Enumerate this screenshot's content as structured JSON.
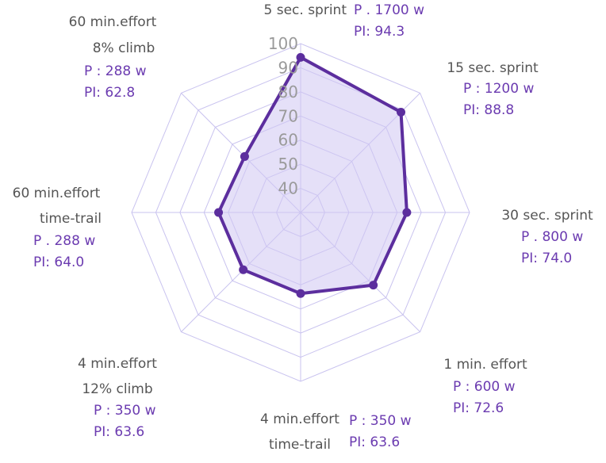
{
  "chart_data": {
    "type": "radar",
    "rlim": [
      30,
      100
    ],
    "ticks": [
      "40",
      "50",
      "60",
      "70",
      "80",
      "90",
      "100"
    ],
    "tick_values": [
      40,
      50,
      60,
      70,
      80,
      90,
      100
    ],
    "grid": true,
    "colors": {
      "series_line": "#5c2e9e",
      "series_fill": "#cfc7f3",
      "grid": "#c9c3ef",
      "label_gray": "#555555",
      "label_purple": "#6b3bb0",
      "tick": "#9a9a9a"
    },
    "axes": [
      {
        "name_lines": [
          "5 sec. sprint"
        ],
        "power": "P . 1700 w",
        "pi": "PI: 94.3",
        "value": 94.3
      },
      {
        "name_lines": [
          "15 sec. sprint"
        ],
        "power": "P : 1200 w",
        "pi": "PI: 88.8",
        "value": 88.8
      },
      {
        "name_lines": [
          "30 sec. sprint"
        ],
        "power": "P . 800 w",
        "pi": "PI: 74.0",
        "value": 74.0
      },
      {
        "name_lines": [
          "1 min. effort"
        ],
        "power": "P : 600 w",
        "pi": "PI: 72.6",
        "value": 72.6
      },
      {
        "name_lines": [
          "4 min.effort",
          "time-trail"
        ],
        "power": "P : 350 w",
        "pi": "PI: 63.6",
        "value": 63.6
      },
      {
        "name_lines": [
          "4 min.effort",
          "12% climb"
        ],
        "power": "P : 350 w",
        "pi": "PI: 63.6",
        "value": 63.6
      },
      {
        "name_lines": [
          "60 min.effort",
          "time-trail"
        ],
        "power": "P . 288 w",
        "pi": "PI: 64.0",
        "value": 64.0
      },
      {
        "name_lines": [
          "60 min.effort",
          "8% climb"
        ],
        "power": "P : 288 w",
        "pi": "PI: 62.8",
        "value": 62.8
      }
    ]
  }
}
